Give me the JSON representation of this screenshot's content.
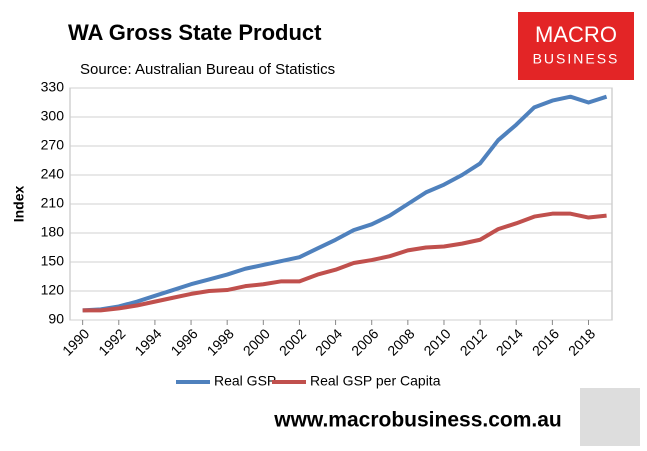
{
  "chart_data": {
    "type": "line",
    "title": "WA Gross State Product",
    "subtitle": "Source: Australian Bureau of Statistics",
    "y_label": "Index",
    "logo_top": "MACRO",
    "logo_bottom": "BUSINESS",
    "footer": "www.macrobusiness.com.au",
    "x": [
      1990,
      1991,
      1992,
      1993,
      1994,
      1995,
      1996,
      1997,
      1998,
      1999,
      2000,
      2001,
      2002,
      2003,
      2004,
      2005,
      2006,
      2007,
      2008,
      2009,
      2010,
      2011,
      2012,
      2013,
      2014,
      2015,
      2016,
      2017,
      2018,
      2019
    ],
    "series": [
      {
        "name": "Real GSP",
        "color": "#4f81bd",
        "values": [
          100,
          101,
          104,
          109,
          115,
          121,
          127,
          132,
          137,
          143,
          147,
          151,
          155,
          164,
          173,
          183,
          189,
          198,
          210,
          222,
          230,
          240,
          252,
          276,
          292,
          310,
          317,
          321,
          315,
          321
        ]
      },
      {
        "name": "Real GSP per Capita",
        "color": "#c0504d",
        "values": [
          100,
          100,
          102,
          105,
          109,
          113,
          117,
          120,
          121,
          125,
          127,
          130,
          130,
          137,
          142,
          149,
          152,
          156,
          162,
          165,
          166,
          169,
          173,
          184,
          190,
          197,
          200,
          200,
          196,
          198
        ]
      }
    ],
    "xlim": [
      1989.3,
      2019.3
    ],
    "xticks": [
      1990,
      1992,
      1994,
      1996,
      1998,
      2000,
      2002,
      2004,
      2006,
      2008,
      2010,
      2012,
      2014,
      2016,
      2018
    ],
    "ylim": [
      90,
      330
    ],
    "yticks": [
      90,
      120,
      150,
      180,
      210,
      240,
      270,
      300,
      330
    ],
    "grid": true
  }
}
